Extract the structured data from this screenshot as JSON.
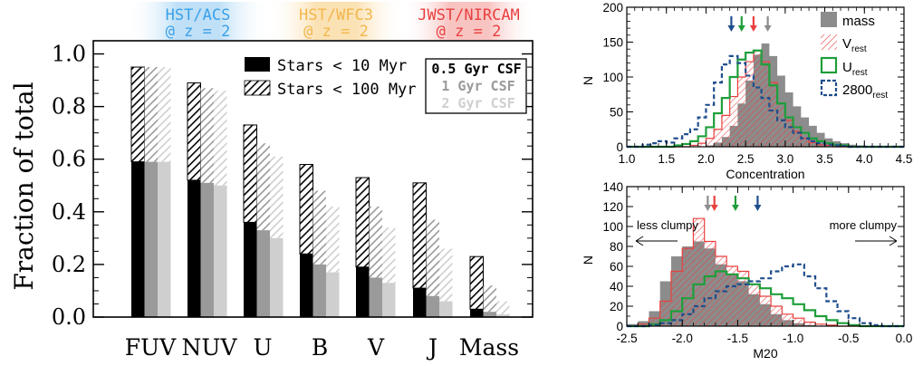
{
  "chart_data": [
    {
      "type": "bar",
      "ylabel": "Fraction of total",
      "ylim": [
        0,
        1.05
      ],
      "yticks": [
        "0.0",
        "0.2",
        "0.4",
        "0.6",
        "0.8",
        "1.0"
      ],
      "categories": [
        "FUV",
        "NUV",
        "U",
        "B",
        "V",
        "J",
        "Mass"
      ],
      "header_labels": [
        {
          "line1": "HST/ACS",
          "line2": "@ z = 2",
          "color": "#3aa0e8"
        },
        {
          "line1": "HST/WFC3",
          "line2": "@ z = 2",
          "color": "#f3b64d"
        },
        {
          "line1": "JWST/NIRCAM",
          "line2": "@ z = 2",
          "color": "#e8403f"
        }
      ],
      "legend": {
        "stars_10": "Stars < 10 Myr",
        "stars_100": "Stars < 100 Myr",
        "csf_05": "0.5 Gyr CSF",
        "csf_1": "1 Gyr CSF",
        "csf_2": "2 Gyr CSF"
      },
      "series": [
        {
          "name": "0.5 Gyr CSF",
          "color": "#000000",
          "lt10": [
            0.59,
            0.52,
            0.36,
            0.24,
            0.19,
            0.11,
            0.03
          ],
          "lt100": [
            0.95,
            0.89,
            0.73,
            0.58,
            0.53,
            0.51,
            0.23
          ]
        },
        {
          "name": "1 Gyr CSF",
          "color": "#9a9a9a",
          "lt10": [
            0.59,
            0.51,
            0.33,
            0.2,
            0.15,
            0.08,
            0.02
          ],
          "lt100": [
            0.95,
            0.87,
            0.66,
            0.48,
            0.42,
            0.37,
            0.12
          ]
        },
        {
          "name": "2 Gyr CSF",
          "color": "#cfcfcf",
          "lt10": [
            0.59,
            0.5,
            0.3,
            0.17,
            0.13,
            0.06,
            0.01
          ],
          "lt100": [
            0.95,
            0.86,
            0.61,
            0.42,
            0.34,
            0.26,
            0.06
          ]
        }
      ]
    },
    {
      "type": "histogram",
      "xlabel": "Concentration",
      "ylabel": "N",
      "xlim": [
        1.0,
        4.5
      ],
      "ylim": [
        0,
        200
      ],
      "xticks": [
        "1.0",
        "1.5",
        "2.0",
        "2.5",
        "3.0",
        "3.5",
        "4.0",
        "4.5"
      ],
      "yticks": [
        "0",
        "50",
        "100",
        "150",
        "200"
      ],
      "bin_edges": [
        1.0,
        1.1,
        1.2,
        1.3,
        1.4,
        1.5,
        1.6,
        1.7,
        1.8,
        1.9,
        2.0,
        2.1,
        2.2,
        2.3,
        2.4,
        2.5,
        2.6,
        2.7,
        2.8,
        2.9,
        3.0,
        3.1,
        3.2,
        3.3,
        3.4,
        3.5,
        3.6,
        3.7,
        3.8,
        3.9,
        4.0,
        4.1,
        4.2,
        4.3,
        4.4,
        4.5
      ],
      "series": [
        {
          "name": "mass",
          "color": "#8c8c8c",
          "counts": [
            0,
            0,
            0,
            0,
            0,
            0,
            0,
            0,
            0,
            0,
            2,
            6,
            14,
            30,
            62,
            95,
            132,
            148,
            130,
            102,
            78,
            58,
            42,
            30,
            20,
            12,
            8,
            5,
            3,
            2,
            0,
            0,
            0,
            0,
            0
          ]
        },
        {
          "name": "V",
          "sub": "rest",
          "color": "#e8403f",
          "counts": [
            0,
            0,
            0,
            0,
            0,
            0,
            0,
            0,
            2,
            5,
            12,
            25,
            45,
            72,
            100,
            122,
            138,
            122,
            92,
            62,
            38,
            22,
            12,
            6,
            3,
            2,
            0,
            0,
            0,
            0,
            0,
            0,
            0,
            0,
            0
          ]
        },
        {
          "name": "U",
          "sub": "rest",
          "color": "#1e9e3a",
          "counts": [
            0,
            0,
            0,
            0,
            0,
            0,
            2,
            4,
            8,
            15,
            28,
            48,
            70,
            100,
            125,
            135,
            138,
            118,
            88,
            62,
            42,
            28,
            20,
            12,
            8,
            5,
            3,
            2,
            0,
            0,
            0,
            0,
            0,
            0,
            0
          ]
        },
        {
          "name": "2800",
          "sub": "rest",
          "color": "#1f4e8c",
          "counts": [
            0,
            0,
            3,
            5,
            8,
            6,
            12,
            18,
            25,
            42,
            60,
            92,
            118,
            130,
            120,
            102,
            85,
            70,
            52,
            38,
            28,
            20,
            12,
            8,
            5,
            3,
            2,
            1,
            0,
            0,
            0,
            0,
            0,
            0,
            0
          ]
        }
      ],
      "arrow_colors": [
        "#1f4e8c",
        "#1e9e3a",
        "#e8403f",
        "#8c8c8c"
      ],
      "arrow_x": [
        2.32,
        2.45,
        2.6,
        2.78
      ]
    },
    {
      "type": "histogram",
      "xlabel": "M20",
      "ylabel": "N",
      "xlim": [
        -2.5,
        0.0
      ],
      "ylim": [
        0,
        140
      ],
      "xticks": [
        "-2.5",
        "-2.0",
        "-1.5",
        "-1.0",
        "-0.5",
        "0.0"
      ],
      "yticks": [
        "0",
        "20",
        "40",
        "60",
        "80",
        "100",
        "120",
        "140"
      ],
      "annotations": {
        "left": "less clumpy",
        "right": "more clumpy"
      },
      "bin_edges": [
        -2.5,
        -2.4,
        -2.3,
        -2.2,
        -2.1,
        -2.0,
        -1.9,
        -1.8,
        -1.7,
        -1.6,
        -1.5,
        -1.4,
        -1.3,
        -1.2,
        -1.1,
        -1.0,
        -0.9,
        -0.8,
        -0.7,
        -0.6,
        -0.5,
        -0.4,
        -0.3,
        -0.2,
        -0.1,
        0.0
      ],
      "series": [
        {
          "name": "mass",
          "color": "#8c8c8c",
          "counts": [
            2,
            5,
            15,
            45,
            70,
            80,
            85,
            78,
            62,
            52,
            45,
            32,
            22,
            12,
            6,
            3,
            1,
            0,
            0,
            0,
            0,
            0,
            0,
            0,
            0
          ]
        },
        {
          "name": "V",
          "sub": "rest",
          "color": "#e8403f",
          "counts": [
            0,
            2,
            8,
            25,
            55,
            78,
            108,
            85,
            70,
            60,
            55,
            42,
            30,
            20,
            12,
            8,
            4,
            2,
            1,
            0,
            0,
            0,
            0,
            0,
            0
          ]
        },
        {
          "name": "U",
          "sub": "rest",
          "color": "#1e9e3a",
          "counts": [
            0,
            0,
            2,
            6,
            15,
            28,
            42,
            50,
            55,
            52,
            48,
            42,
            38,
            32,
            28,
            22,
            16,
            10,
            6,
            3,
            1,
            0,
            0,
            0,
            0
          ]
        },
        {
          "name": "2800",
          "sub": "rest",
          "color": "#1f4e8c",
          "counts": [
            0,
            0,
            1,
            3,
            6,
            12,
            20,
            28,
            35,
            40,
            42,
            45,
            48,
            55,
            60,
            62,
            50,
            38,
            25,
            15,
            8,
            3,
            1,
            0,
            0
          ]
        }
      ],
      "arrow_colors": [
        "#8c8c8c",
        "#e8403f",
        "#1e9e3a",
        "#1f4e8c"
      ],
      "arrow_x": [
        -1.77,
        -1.71,
        -1.52,
        -1.32
      ]
    }
  ]
}
